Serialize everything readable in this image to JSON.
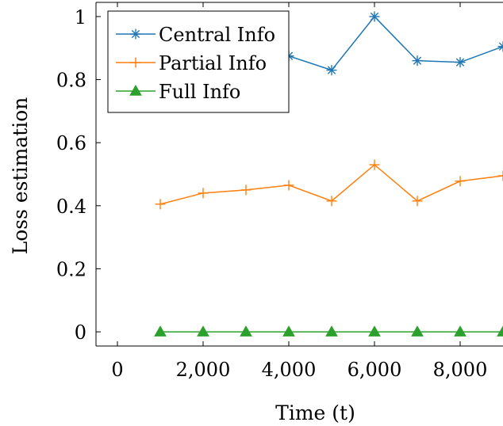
{
  "chart_data": {
    "type": "line",
    "xlabel": "Time (t)",
    "ylabel": "Loss estimation",
    "xlim": [
      -500,
      9000
    ],
    "ylim": [
      -0.045,
      1.045
    ],
    "x_ticks": [
      0,
      2000,
      4000,
      6000,
      8000
    ],
    "x_tick_labels": [
      "0",
      "2,000",
      "4,000",
      "6,000",
      "8,000"
    ],
    "y_ticks": [
      0,
      0.2,
      0.4,
      0.6,
      0.8,
      1
    ],
    "y_tick_labels": [
      "0",
      "0.2",
      "0.4",
      "0.6",
      "0.8",
      "1"
    ],
    "grid": false,
    "legend_position": "top-left",
    "series": [
      {
        "name": "Central Info",
        "color": "#1f77b4",
        "marker": "asterisk",
        "x": [
          1000,
          2000,
          3000,
          4000,
          5000,
          6000,
          7000,
          8000,
          9000
        ],
        "y": [
          0.77,
          0.81,
          0.89,
          0.875,
          0.83,
          1.0,
          0.86,
          0.855,
          0.905
        ]
      },
      {
        "name": "Partial Info",
        "color": "#ff7f0e",
        "marker": "plus",
        "x": [
          1000,
          2000,
          3000,
          4000,
          5000,
          6000,
          7000,
          8000,
          9000
        ],
        "y": [
          0.405,
          0.44,
          0.45,
          0.465,
          0.415,
          0.53,
          0.415,
          0.478,
          0.495
        ]
      },
      {
        "name": "Full Info",
        "color": "#2ca02c",
        "marker": "triangle",
        "x": [
          1000,
          2000,
          3000,
          4000,
          5000,
          6000,
          7000,
          8000,
          9000
        ],
        "y": [
          0,
          0,
          0,
          0,
          0,
          0,
          0,
          0,
          0
        ]
      }
    ]
  }
}
